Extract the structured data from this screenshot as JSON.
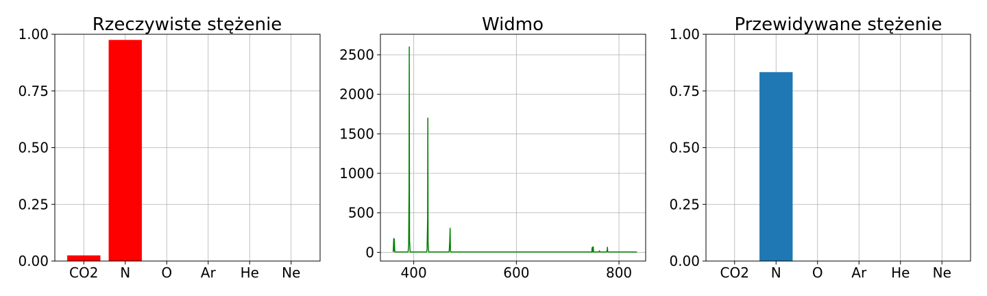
{
  "chart_data": [
    {
      "type": "bar",
      "title": "Rzeczywiste stężenie",
      "categories": [
        "CO2",
        "N",
        "O",
        "Ar",
        "He",
        "Ne"
      ],
      "values": [
        0.025,
        0.975,
        0,
        0,
        0,
        0
      ],
      "ylim": [
        0,
        1
      ],
      "yticks": [
        "0.00",
        "0.25",
        "0.50",
        "0.75",
        "1.00"
      ],
      "color": "#ff0000",
      "grid": true
    },
    {
      "type": "line",
      "title": "Widmo",
      "xlim": [
        335,
        852
      ],
      "ylim": [
        -110,
        2760
      ],
      "xticks": [
        "400",
        "600",
        "800"
      ],
      "yticks": [
        "0",
        "500",
        "1000",
        "1500",
        "2000",
        "2500"
      ],
      "color": "#008000",
      "grid": true,
      "series": [
        {
          "x": [
            360,
            361,
            361.5,
            362,
            363,
            389,
            390,
            390.8,
            391.3,
            391.8,
            393,
            425,
            426,
            427,
            427.5,
            428,
            429,
            469,
            470,
            470.8,
            471.5,
            472.5,
            747,
            747.6,
            748,
            748.6,
            749.2,
            749.8,
            750.5,
            761,
            762,
            762.5,
            763.5,
            776,
            777,
            777.4,
            778,
            779,
            835
          ],
          "y": [
            5,
            175,
            20,
            170,
            5,
            5,
            90,
            780,
            2600,
            150,
            5,
            5,
            40,
            450,
            1700,
            120,
            5,
            5,
            130,
            305,
            20,
            5,
            5,
            60,
            10,
            65,
            5,
            70,
            5,
            5,
            20,
            5,
            5,
            5,
            30,
            65,
            10,
            5,
            5
          ]
        }
      ]
    },
    {
      "type": "bar",
      "title": "Przewidywane stężenie",
      "categories": [
        "CO2",
        "N",
        "O",
        "Ar",
        "He",
        "Ne"
      ],
      "values": [
        0,
        0.833,
        0,
        0,
        0,
        0
      ],
      "ylim": [
        0,
        1
      ],
      "yticks": [
        "0.00",
        "0.25",
        "0.50",
        "0.75",
        "1.00"
      ],
      "color": "#1f77b4",
      "grid": true
    }
  ]
}
